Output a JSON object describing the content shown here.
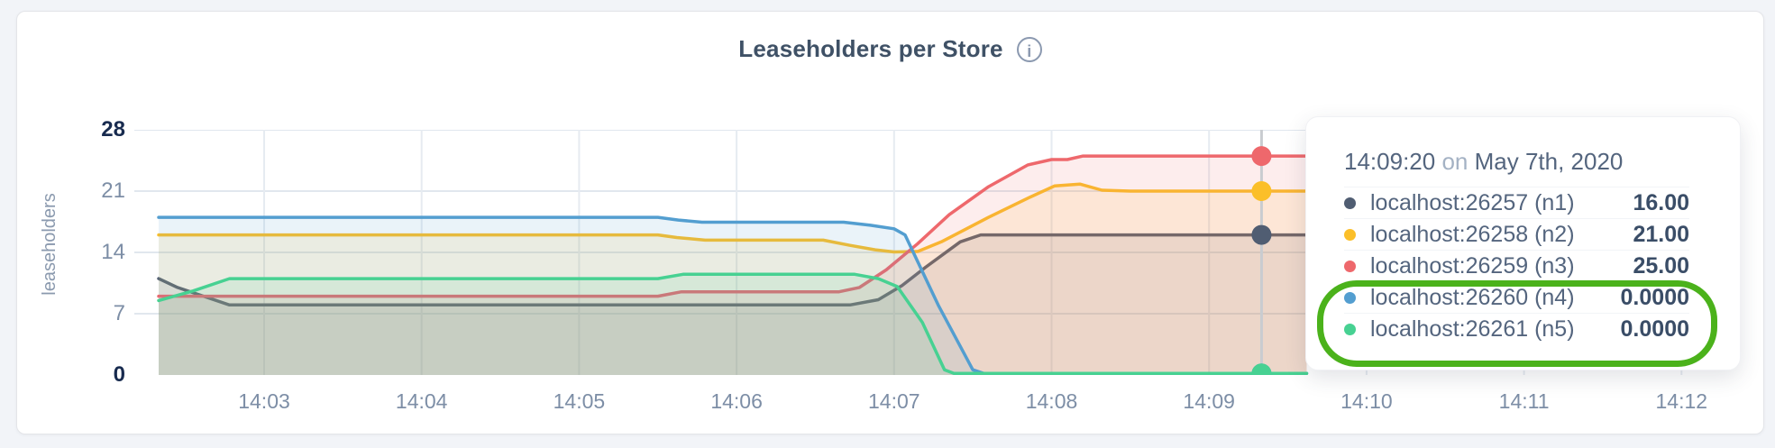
{
  "chart": {
    "title": "Leaseholders per Store",
    "info_icon_glyph": "i"
  },
  "chart_data": {
    "type": "area",
    "title": "Leaseholders per Store",
    "xlabel": "",
    "ylabel": "leaseholders",
    "ylim": [
      0,
      28
    ],
    "grid": true,
    "x_domain_minutes_after_1400": [
      2.33,
      9.62
    ],
    "y_ticks": [
      {
        "v": 0,
        "label": "0",
        "bold": true
      },
      {
        "v": 7,
        "label": "7",
        "bold": false
      },
      {
        "v": 14,
        "label": "14",
        "bold": false
      },
      {
        "v": 21,
        "label": "21",
        "bold": false
      },
      {
        "v": 28,
        "label": "28",
        "bold": true
      }
    ],
    "x_ticks": [
      {
        "m": 3,
        "label": "14:03"
      },
      {
        "m": 4,
        "label": "14:04"
      },
      {
        "m": 5,
        "label": "14:05"
      },
      {
        "m": 6,
        "label": "14:06"
      },
      {
        "m": 7,
        "label": "14:07"
      },
      {
        "m": 8,
        "label": "14:08"
      },
      {
        "m": 9,
        "label": "14:09"
      },
      {
        "m": 10,
        "label": "14:10"
      },
      {
        "m": 11,
        "label": "14:11"
      },
      {
        "m": 12,
        "label": "14:12"
      }
    ],
    "series": [
      {
        "id": "n1",
        "name": "localhost:26257 (n1)",
        "color": "#505d72",
        "points": [
          [
            2.33,
            11
          ],
          [
            2.45,
            10
          ],
          [
            2.78,
            8
          ],
          [
            6.72,
            8
          ],
          [
            6.9,
            8.6
          ],
          [
            7.05,
            10.2
          ],
          [
            7.2,
            12.3
          ],
          [
            7.42,
            15.2
          ],
          [
            7.55,
            16
          ],
          [
            9.62,
            16
          ]
        ],
        "hover_value": 16,
        "tooltip_value": "16.00"
      },
      {
        "id": "n2",
        "name": "localhost:26258 (n2)",
        "color": "#fbbf29",
        "points": [
          [
            2.33,
            16
          ],
          [
            5.5,
            16
          ],
          [
            5.62,
            15.7
          ],
          [
            5.8,
            15.4
          ],
          [
            6.55,
            15.4
          ],
          [
            6.72,
            14.8
          ],
          [
            6.88,
            14.3
          ],
          [
            7.0,
            14.05
          ],
          [
            7.15,
            14.1
          ],
          [
            7.3,
            15.2
          ],
          [
            7.6,
            18
          ],
          [
            7.85,
            20.2
          ],
          [
            8.02,
            21.6
          ],
          [
            8.18,
            21.8
          ],
          [
            8.32,
            21.1
          ],
          [
            8.5,
            21
          ],
          [
            9.62,
            21
          ]
        ],
        "hover_value": 21,
        "tooltip_value": "21.00"
      },
      {
        "id": "n3",
        "name": "localhost:26259 (n3)",
        "color": "#ee686c",
        "points": [
          [
            2.33,
            9
          ],
          [
            5.5,
            9
          ],
          [
            5.65,
            9.5
          ],
          [
            6.65,
            9.5
          ],
          [
            6.78,
            10
          ],
          [
            6.95,
            12
          ],
          [
            7.15,
            15
          ],
          [
            7.35,
            18.3
          ],
          [
            7.6,
            21.5
          ],
          [
            7.85,
            24
          ],
          [
            8.0,
            24.6
          ],
          [
            8.1,
            24.6
          ],
          [
            8.2,
            25
          ],
          [
            9.62,
            25
          ]
        ],
        "hover_value": 25,
        "tooltip_value": "25.00"
      },
      {
        "id": "n4",
        "name": "localhost:26260 (n4)",
        "color": "#539ed0",
        "points": [
          [
            2.33,
            18
          ],
          [
            5.5,
            18
          ],
          [
            5.63,
            17.7
          ],
          [
            5.78,
            17.45
          ],
          [
            6.68,
            17.45
          ],
          [
            6.85,
            17.1
          ],
          [
            7.0,
            16.7
          ],
          [
            7.07,
            16
          ],
          [
            7.28,
            8
          ],
          [
            7.5,
            0.6
          ],
          [
            7.57,
            0
          ],
          [
            9.62,
            0
          ]
        ],
        "hover_value": 0,
        "tooltip_value": "0.0000"
      },
      {
        "id": "n5",
        "name": "localhost:26261 (n5)",
        "color": "#47d192",
        "points": [
          [
            2.33,
            8.5
          ],
          [
            2.55,
            9.6
          ],
          [
            2.78,
            11
          ],
          [
            5.5,
            11
          ],
          [
            5.66,
            11.5
          ],
          [
            6.75,
            11.5
          ],
          [
            6.9,
            11
          ],
          [
            7.02,
            10.1
          ],
          [
            7.18,
            6
          ],
          [
            7.32,
            0.6
          ],
          [
            7.38,
            0
          ],
          [
            9.62,
            0
          ]
        ],
        "hover_value": 0,
        "tooltip_value": "0.0000"
      }
    ],
    "hover": {
      "time_minutes": 9.3333,
      "time_label": "14:09:20",
      "line_color": "#c9ccd0",
      "dot_draw_order": [
        3,
        0,
        1,
        2,
        4
      ]
    },
    "fill_opacity": 0.12,
    "grid_color_vertical": "#e6ebf1",
    "grid_color_horizontal": "#e1e7ee",
    "legend_position": "tooltip"
  },
  "tooltip": {
    "time": "14:09:20",
    "conjunction": "on",
    "date": "May 7th, 2020",
    "rows": [
      {
        "label": "localhost:26257 (n1)",
        "value": "16.00"
      },
      {
        "label": "localhost:26258 (n2)",
        "value": "21.00"
      },
      {
        "label": "localhost:26259 (n3)",
        "value": "25.00"
      },
      {
        "label": "localhost:26260 (n4)",
        "value": "0.0000"
      },
      {
        "label": "localhost:26261 (n5)",
        "value": "0.0000"
      }
    ]
  },
  "annotation": {
    "color": "#4bb21b",
    "highlighted_rows": [
      "localhost:26260 (n4)",
      "localhost:26261 (n5)"
    ]
  }
}
